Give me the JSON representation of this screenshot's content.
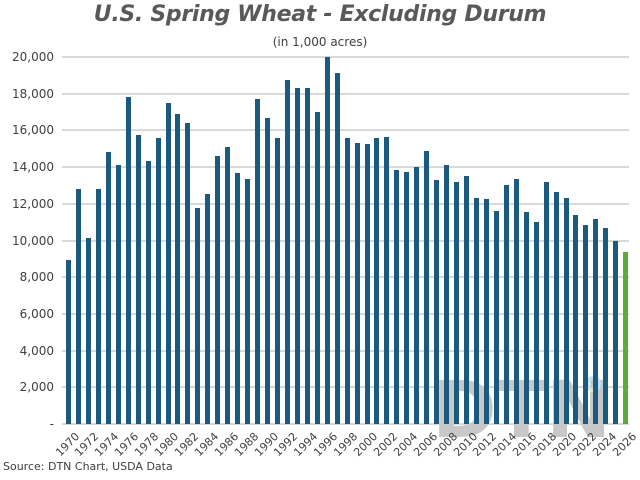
{
  "chart_data": {
    "type": "bar",
    "title": "U.S. Spring Wheat - Excluding Durum",
    "subtitle": "(in 1,000 acres)",
    "xlabel": "",
    "ylabel": "",
    "ylim": [
      0,
      20000
    ],
    "yticks": [
      "-",
      "2,000",
      "4,000",
      "6,000",
      "8,000",
      "10,000",
      "12,000",
      "14,000",
      "16,000",
      "18,000",
      "20,000"
    ],
    "xtick_labels": [
      "1970",
      "1972",
      "1974",
      "1976",
      "1978",
      "1980",
      "1982",
      "1984",
      "1986",
      "1988",
      "1990",
      "1992",
      "1994",
      "1996",
      "1998",
      "2000",
      "2002",
      "2004",
      "2006",
      "2008",
      "2010",
      "2012",
      "2014",
      "2016",
      "2018",
      "2020",
      "2022",
      "2024",
      "2026"
    ],
    "grid": true,
    "legend": null,
    "categories": [
      "1970",
      "1971",
      "1972",
      "1973",
      "1974",
      "1975",
      "1976",
      "1977",
      "1978",
      "1979",
      "1980",
      "1981",
      "1982",
      "1983",
      "1984",
      "1985",
      "1986",
      "1987",
      "1988",
      "1989",
      "1990",
      "1991",
      "1992",
      "1993",
      "1994",
      "1995",
      "1996",
      "1997",
      "1998",
      "1999",
      "2000",
      "2001",
      "2002",
      "2003",
      "2004",
      "2005",
      "2006",
      "2007",
      "2008",
      "2009",
      "2010",
      "2011",
      "2012",
      "2013",
      "2014",
      "2015",
      "2016",
      "2017",
      "2018",
      "2019",
      "2020",
      "2021",
      "2022",
      "2023",
      "2024",
      "2025",
      "2026"
    ],
    "values": [
      8950,
      12800,
      10130,
      12780,
      14850,
      14110,
      17810,
      15750,
      14330,
      15590,
      17490,
      16920,
      16430,
      11750,
      12510,
      14600,
      15100,
      13660,
      13370,
      17720,
      16700,
      15590,
      18740,
      18320,
      18320,
      16990,
      20020,
      19130,
      15560,
      15320,
      15280,
      15570,
      15630,
      13830,
      13750,
      14030,
      14900,
      13280,
      14110,
      13210,
      13510,
      12330,
      12240,
      11600,
      13020,
      13350,
      11550,
      11020,
      13190,
      12660,
      12300,
      11400,
      10840,
      11190,
      10660,
      9980,
      9400
    ],
    "colors": {
      "bar": "#1a5a7e",
      "highlight": "#5aad34",
      "highlight_category": "2026",
      "grid": "#d9d9d9"
    },
    "annotations": [
      "Source: DTN Chart, USDA Data"
    ]
  },
  "header": {
    "title": "U.S. Spring Wheat - Excluding Durum",
    "subtitle": "(in 1,000 acres)"
  },
  "footer": {
    "source": "Source: DTN Chart, USDA Data"
  },
  "watermark": {
    "text": "DTN"
  }
}
